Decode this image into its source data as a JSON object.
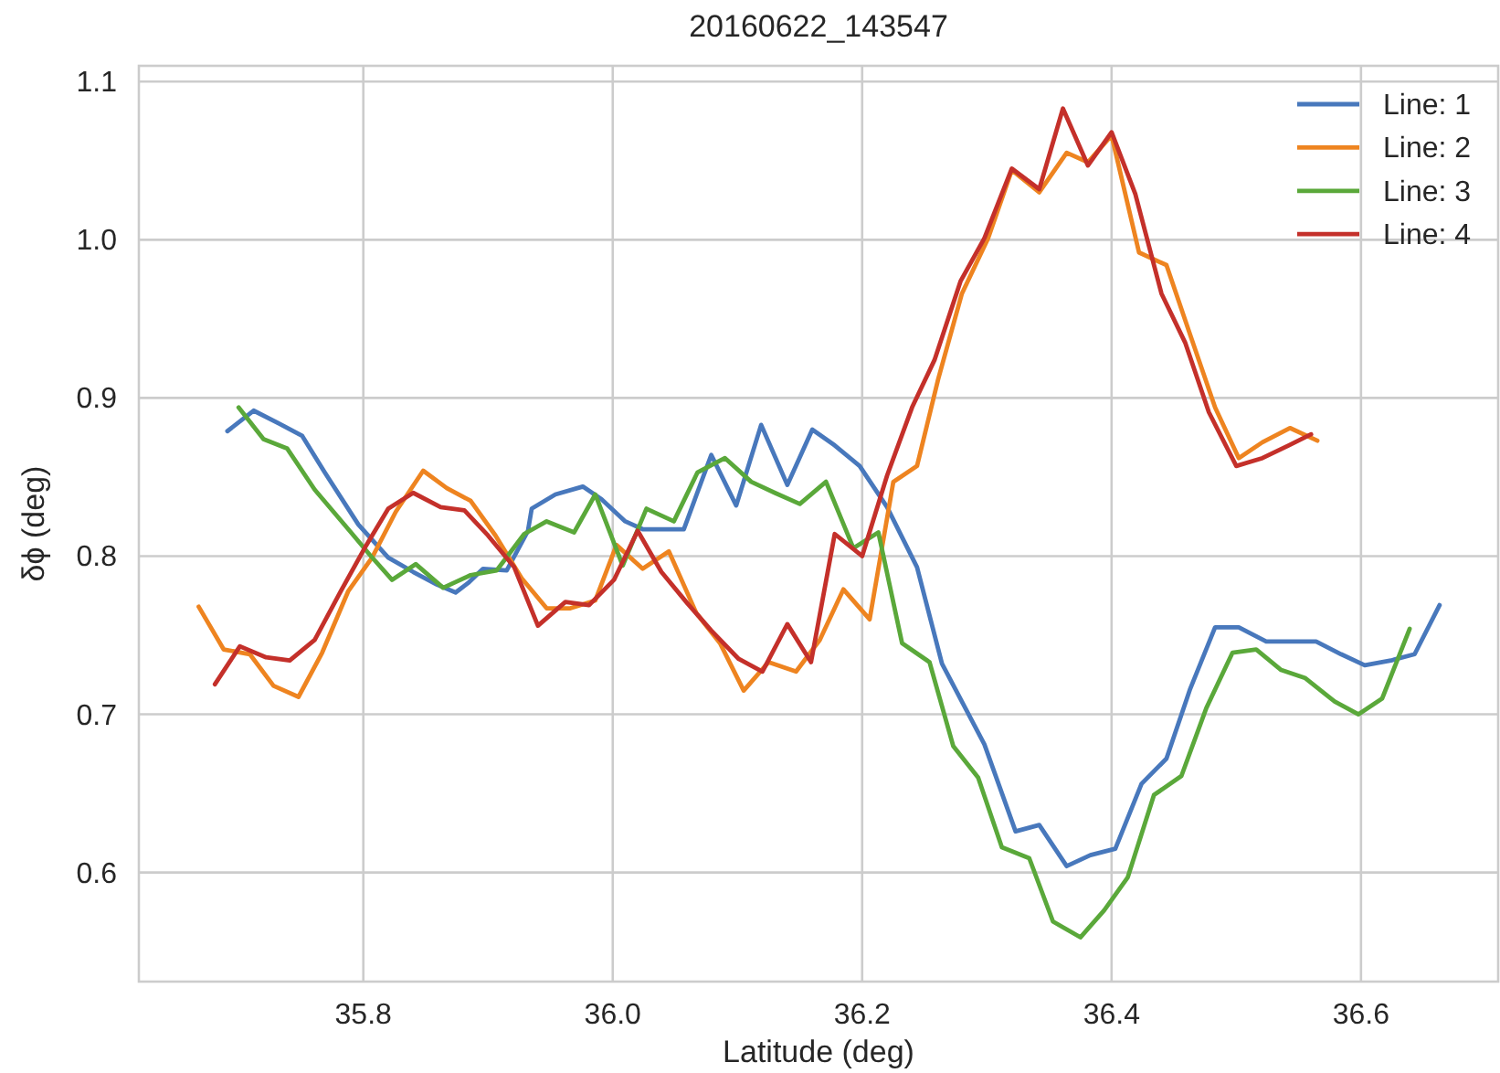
{
  "chart_data": {
    "type": "line",
    "title": "20160622_143547",
    "xlabel": "Latitude (deg)",
    "ylabel": "δϕ (deg)",
    "xlim": [
      35.62,
      36.71
    ],
    "ylim": [
      0.531,
      1.11
    ],
    "xticks": [
      35.8,
      {
        "value": 36,
        "label": "36.0"
      },
      36.2,
      36.4,
      36.6
    ],
    "yticks": [
      0.6,
      0.7,
      0.8,
      0.9,
      {
        "value": 1,
        "label": "1.0"
      },
      1.1
    ],
    "grid": true,
    "legend": "top right",
    "series": [
      {
        "name": "Line: 1",
        "color": "#4878bc",
        "x": [
          35.691,
          35.712,
          35.732,
          35.751,
          35.769,
          35.796,
          35.82,
          35.84,
          35.859,
          35.874,
          35.884,
          35.896,
          35.915,
          35.932,
          35.935,
          35.954,
          35.976,
          35.991,
          36.01,
          36.024,
          36.057,
          36.079,
          36.099,
          36.119,
          36.14,
          36.16,
          36.178,
          36.198,
          36.22,
          36.244,
          36.264,
          36.298,
          36.323,
          36.342,
          36.364,
          36.383,
          36.403,
          36.424,
          36.444,
          36.463,
          36.483,
          36.502,
          36.524,
          36.564,
          36.584,
          36.603,
          36.624,
          36.643,
          36.663
        ],
        "values": [
          0.879,
          0.892,
          0.884,
          0.876,
          0.853,
          0.82,
          0.799,
          0.79,
          0.782,
          0.777,
          0.783,
          0.792,
          0.791,
          0.816,
          0.83,
          0.839,
          0.844,
          0.836,
          0.822,
          0.817,
          0.817,
          0.864,
          0.832,
          0.883,
          0.845,
          0.88,
          0.87,
          0.857,
          0.831,
          0.793,
          0.732,
          0.681,
          0.626,
          0.63,
          0.604,
          0.611,
          0.615,
          0.656,
          0.672,
          0.716,
          0.755,
          0.755,
          0.746,
          0.746,
          0.738,
          0.731,
          0.734,
          0.738,
          0.769
        ]
      },
      {
        "name": "Line: 2",
        "color": "#ee8420",
        "x": [
          35.668,
          35.688,
          35.709,
          35.728,
          35.748,
          35.767,
          35.788,
          35.807,
          35.826,
          35.848,
          35.867,
          35.886,
          35.906,
          35.927,
          35.947,
          35.966,
          35.986,
          36.003,
          36.024,
          36.045,
          36.067,
          36.086,
          36.105,
          36.125,
          36.147,
          36.166,
          36.185,
          36.206,
          36.225,
          36.244,
          36.261,
          36.28,
          36.301,
          36.32,
          36.342,
          36.364,
          36.381,
          36.4,
          36.422,
          36.444,
          36.463,
          36.483,
          36.502,
          36.521,
          36.543,
          36.565
        ],
        "values": [
          0.768,
          0.741,
          0.738,
          0.718,
          0.711,
          0.739,
          0.778,
          0.799,
          0.828,
          0.854,
          0.843,
          0.835,
          0.813,
          0.786,
          0.767,
          0.767,
          0.772,
          0.807,
          0.792,
          0.803,
          0.764,
          0.745,
          0.715,
          0.733,
          0.727,
          0.747,
          0.779,
          0.76,
          0.847,
          0.857,
          0.912,
          0.966,
          1.001,
          1.044,
          1.03,
          1.055,
          1.049,
          1.066,
          0.992,
          0.984,
          0.94,
          0.894,
          0.862,
          0.872,
          0.881,
          0.873
        ]
      },
      {
        "name": "Line: 3",
        "color": "#5aa83a",
        "x": [
          35.7,
          35.72,
          35.739,
          35.761,
          35.789,
          35.805,
          35.823,
          35.842,
          35.864,
          35.886,
          35.907,
          35.929,
          35.947,
          35.969,
          35.986,
          36.008,
          36.027,
          36.049,
          36.068,
          36.09,
          36.111,
          36.13,
          36.15,
          36.171,
          36.193,
          36.213,
          36.232,
          36.254,
          36.273,
          36.293,
          36.312,
          36.334,
          36.353,
          36.375,
          36.394,
          36.413,
          36.434,
          36.456,
          36.476,
          36.497,
          36.516,
          36.536,
          36.555,
          36.579,
          36.598,
          36.617,
          36.639
        ],
        "values": [
          0.894,
          0.874,
          0.868,
          0.842,
          0.816,
          0.801,
          0.785,
          0.795,
          0.78,
          0.788,
          0.791,
          0.814,
          0.822,
          0.815,
          0.839,
          0.794,
          0.83,
          0.822,
          0.853,
          0.862,
          0.847,
          0.84,
          0.833,
          0.847,
          0.805,
          0.815,
          0.745,
          0.733,
          0.68,
          0.66,
          0.616,
          0.609,
          0.569,
          0.559,
          0.576,
          0.597,
          0.649,
          0.661,
          0.704,
          0.739,
          0.741,
          0.728,
          0.723,
          0.708,
          0.7,
          0.71,
          0.754
        ]
      },
      {
        "name": "Line: 4",
        "color": "#c4302a",
        "x": [
          35.681,
          35.701,
          35.722,
          35.741,
          35.761,
          35.782,
          35.801,
          35.82,
          35.84,
          35.862,
          35.881,
          35.9,
          35.921,
          35.94,
          35.962,
          35.981,
          36.001,
          36.02,
          36.039,
          36.06,
          36.079,
          36.101,
          36.12,
          36.14,
          36.159,
          36.178,
          36.2,
          36.22,
          36.24,
          36.258,
          36.279,
          36.298,
          36.32,
          36.342,
          36.361,
          36.381,
          36.4,
          36.419,
          36.44,
          36.459,
          36.478,
          36.5,
          36.521,
          36.542,
          36.56
        ],
        "values": [
          0.719,
          0.743,
          0.736,
          0.734,
          0.747,
          0.778,
          0.805,
          0.83,
          0.84,
          0.831,
          0.829,
          0.813,
          0.793,
          0.756,
          0.771,
          0.769,
          0.785,
          0.816,
          0.79,
          0.77,
          0.753,
          0.735,
          0.727,
          0.757,
          0.733,
          0.814,
          0.8,
          0.851,
          0.894,
          0.924,
          0.974,
          1.001,
          1.045,
          1.032,
          1.083,
          1.047,
          1.068,
          1.029,
          0.966,
          0.935,
          0.891,
          0.857,
          0.862,
          0.87,
          0.877
        ]
      }
    ]
  }
}
